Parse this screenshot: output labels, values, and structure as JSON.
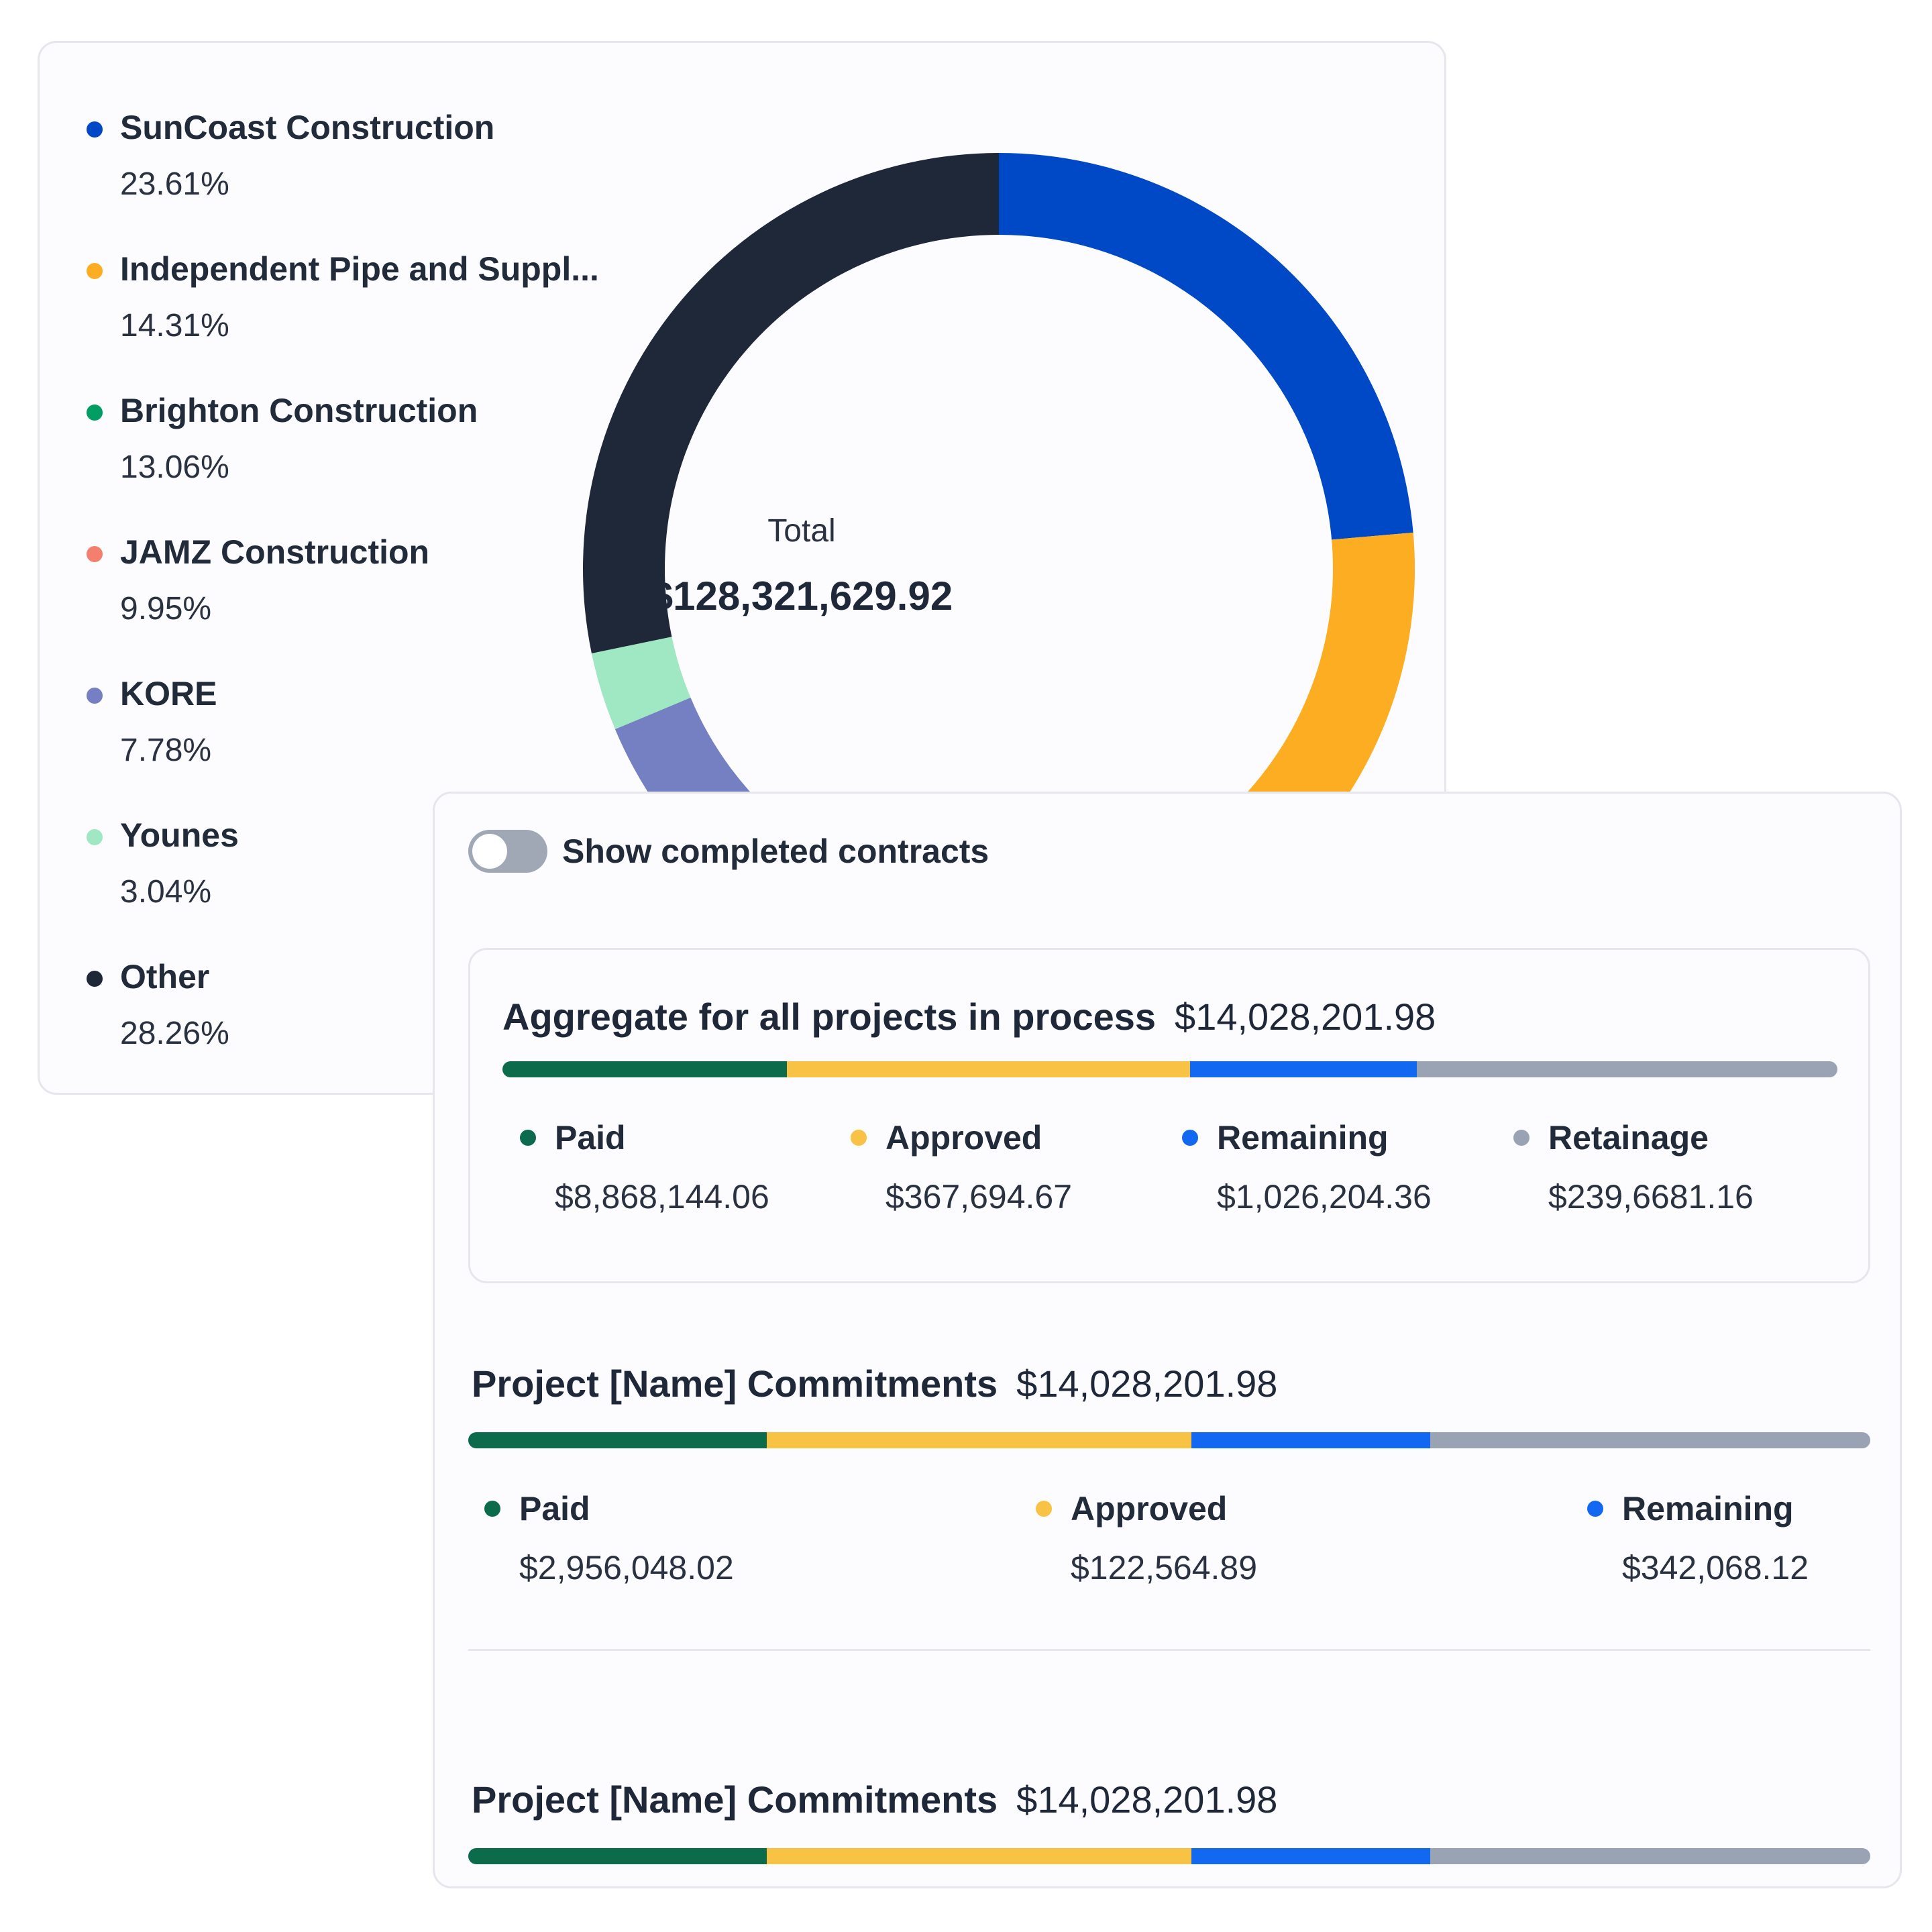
{
  "colors": {
    "suncoast": "#0049c6",
    "independent": "#fdad22",
    "brighton": "#009e63",
    "jamz": "#f47f6e",
    "kore": "#7580c3",
    "younes": "#a0e8c4",
    "other": "#1f2839",
    "paid": "#0b6b4a",
    "approved": "#f8c244",
    "remaining": "#1268f0",
    "retainage": "#9aa3b3"
  },
  "chart_data": {
    "type": "pie",
    "total_label": "Total",
    "total_value": "$128,321,629.92",
    "categories": [
      "SunCoast Construction",
      "Independent Pipe and Suppl...",
      "Brighton Construction",
      "JAMZ Construction",
      "KORE",
      "Younes",
      "Other"
    ],
    "values": [
      23.61,
      14.31,
      13.06,
      9.95,
      7.78,
      3.04,
      28.26
    ],
    "legend": [
      {
        "name": "SunCoast Construction",
        "pct": "23.61%"
      },
      {
        "name": "Independent Pipe and Suppl...",
        "pct": "14.31%"
      },
      {
        "name": "Brighton Construction",
        "pct": "13.06%"
      },
      {
        "name": "JAMZ Construction",
        "pct": "9.95%"
      },
      {
        "name": "KORE",
        "pct": "7.78%"
      },
      {
        "name": "Younes",
        "pct": "3.04%"
      },
      {
        "name": "Other",
        "pct": "28.26%"
      }
    ]
  },
  "toggle": {
    "label": "Show completed contracts",
    "checked": false
  },
  "aggregate": {
    "title": "Aggregate for all projects in process",
    "amount": "$14,028,201.98",
    "bar_fractions": [
      0.213,
      0.302,
      0.17,
      0.315
    ],
    "stats": [
      {
        "label": "Paid",
        "value": "$8,868,144.06"
      },
      {
        "label": "Approved",
        "value": "$367,694.67"
      },
      {
        "label": "Remaining",
        "value": "$1,026,204.36"
      },
      {
        "label": "Retainage",
        "value": "$239,6681.16"
      }
    ]
  },
  "projects": [
    {
      "title": "Project [Name] Commitments",
      "amount": "$14,028,201.98",
      "bar_fractions": [
        0.213,
        0.303,
        0.17,
        0.314
      ],
      "stats": [
        {
          "label": "Paid",
          "value": "$2,956,048.02"
        },
        {
          "label": "Approved",
          "value": "$122,564.89"
        },
        {
          "label": "Remaining",
          "value": "$342,068.12"
        }
      ]
    },
    {
      "title": "Project [Name] Commitments",
      "amount": "$14,028,201.98",
      "bar_fractions": [
        0.213,
        0.303,
        0.17,
        0.314
      ]
    }
  ]
}
